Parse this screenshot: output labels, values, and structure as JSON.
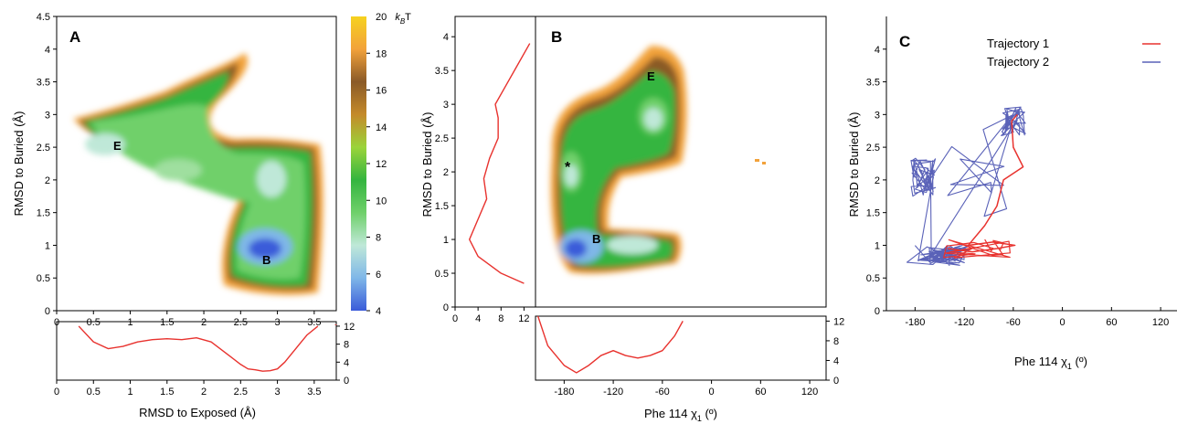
{
  "colorbar": {
    "label_value": "20",
    "label_unit_prefix": "k",
    "label_unit_sub": "B",
    "label_unit_suffix": "T",
    "ticks": [
      "4",
      "6",
      "8",
      "10",
      "12",
      "14",
      "16",
      "18"
    ],
    "colormap": [
      "#3a5bd9",
      "#7fb7e8",
      "#bfe8d8",
      "#6fd06a",
      "#34b53f",
      "#9bd43a",
      "#c48a2a",
      "#8a5a28",
      "#f2a23b",
      "#f6d21f"
    ]
  },
  "panelA": {
    "letter": "A",
    "xlabel": "RMSD to Exposed (Å)",
    "ylabel": "RMSD to Buried (Å)",
    "x_ticks": [
      "0",
      "0.5",
      "1",
      "1.5",
      "2",
      "2.5",
      "3",
      "3.5"
    ],
    "y_ticks": [
      "0",
      "0.5",
      "1",
      "1.5",
      "2",
      "2.5",
      "3",
      "3.5",
      "4",
      "4.5"
    ],
    "bottom_ticks": [
      "0",
      "4",
      "8",
      "12"
    ],
    "label_E": "E",
    "label_B": "B",
    "marker": "-"
  },
  "panelB": {
    "letter": "B",
    "xlabel_main": "Phe 114 χ",
    "xlabel_sub": "1",
    "xlabel_unit": " (º)",
    "ylabel": "RMSD to Buried (Å)",
    "x_ticks": [
      "-180",
      "-120",
      "-60",
      "0",
      "60",
      "120"
    ],
    "y_ticks": [
      "0",
      "0.5",
      "1",
      "1.5",
      "2",
      "2.5",
      "3",
      "3.5",
      "4"
    ],
    "side_ticks": [
      "0",
      "4",
      "8",
      "12"
    ],
    "bottom_ticks": [
      "0",
      "4",
      "8",
      "12"
    ],
    "label_E": "E",
    "label_B": "B",
    "label_star": "*"
  },
  "panelC": {
    "letter": "C",
    "xlabel_main": "Phe 114 χ",
    "xlabel_sub": "1",
    "xlabel_unit": " (º)",
    "ylabel": "RMSD to Buried (Å)",
    "x_ticks": [
      "-180",
      "-120",
      "-60",
      "0",
      "60",
      "120"
    ],
    "y_ticks": [
      "0",
      "0.5",
      "1",
      "1.5",
      "2",
      "2.5",
      "3",
      "3.5",
      "4"
    ],
    "legend": [
      {
        "name": "Trajectory 1",
        "color": "#e8322e"
      },
      {
        "name": "Trajectory 2",
        "color": "#5a62b8"
      }
    ]
  },
  "chart_data": [
    {
      "type": "heatmap",
      "title": "",
      "xlabel": "RMSD to Exposed (Å)",
      "ylabel": "RMSD to Buried (Å)",
      "xlim": [
        0,
        3.8
      ],
      "ylim": [
        0,
        4.5
      ],
      "colorbar_range": [
        4,
        20
      ],
      "colorbar_unit": "kBT",
      "annotations": [
        {
          "text": "E",
          "x": 0.8,
          "y": 2.9
        },
        {
          "text": "B",
          "x": 2.8,
          "y": 0.8
        }
      ],
      "basins_kBT": [
        {
          "x": 0.55,
          "y": 2.95,
          "value": 10
        },
        {
          "x": 1.45,
          "y": 2.1,
          "value": 12
        },
        {
          "x": 2.75,
          "y": 2.0,
          "value": 7
        },
        {
          "x": 2.85,
          "y": 0.85,
          "value": 4.5
        }
      ],
      "marginal_x": {
        "ylim": [
          0,
          13
        ],
        "x": [
          0.3,
          0.5,
          0.7,
          0.9,
          1.1,
          1.3,
          1.5,
          1.7,
          1.9,
          2.1,
          2.3,
          2.5,
          2.6,
          2.7,
          2.8,
          2.9,
          3.0,
          3.1,
          3.2,
          3.3,
          3.4,
          3.55
        ],
        "y": [
          12,
          8.5,
          7,
          7.5,
          8.5,
          9.0,
          9.2,
          9.0,
          9.4,
          8.5,
          6,
          3.5,
          2.5,
          2.3,
          2.0,
          2.1,
          2.5,
          4,
          6,
          8,
          10,
          12
        ]
      }
    },
    {
      "type": "heatmap",
      "title": "",
      "xlabel": "Phe 114 χ1 (º)",
      "ylabel": "RMSD to Buried (Å)",
      "xlim": [
        -215,
        140
      ],
      "ylim": [
        0,
        4.3
      ],
      "colorbar_range": [
        4,
        20
      ],
      "annotations": [
        {
          "text": "E",
          "x": -75,
          "y": 3.7
        },
        {
          "text": "B",
          "x": -143,
          "y": 0.95
        },
        {
          "text": "*",
          "x": -176,
          "y": 2.2
        }
      ],
      "basins_kBT": [
        {
          "x": -75,
          "y": 2.95,
          "value": 9
        },
        {
          "x": -178,
          "y": 2.05,
          "value": 7
        },
        {
          "x": -165,
          "y": 0.85,
          "value": 4.5
        },
        {
          "x": -105,
          "y": 0.9,
          "value": 6
        }
      ],
      "marginal_y": {
        "xlim": [
          0,
          14
        ],
        "y": [
          0.35,
          0.5,
          0.75,
          1.0,
          1.3,
          1.6,
          1.9,
          2.2,
          2.5,
          2.8,
          3.0,
          3.3,
          3.6,
          3.9
        ],
        "x": [
          12,
          8,
          4,
          2.5,
          4,
          5.5,
          5,
          6,
          7.5,
          7.5,
          7,
          9,
          11,
          13
        ]
      },
      "marginal_x": {
        "ylim": [
          0,
          13
        ],
        "x": [
          -212,
          -200,
          -180,
          -165,
          -150,
          -135,
          -120,
          -105,
          -90,
          -75,
          -60,
          -45,
          -35
        ],
        "y": [
          13,
          7,
          3,
          1.5,
          3,
          5,
          6,
          5,
          4.5,
          5,
          6,
          9,
          12
        ]
      }
    },
    {
      "type": "line",
      "title": "",
      "xlabel": "Phe 114 χ1 (º)",
      "ylabel": "RMSD to Buried (Å)",
      "xlim": [
        -215,
        140
      ],
      "ylim": [
        0,
        4.5
      ],
      "series": [
        {
          "name": "Trajectory 1",
          "points": [
            [
              -140,
              0.95
            ],
            [
              -110,
              0.9
            ],
            [
              -80,
              0.95
            ],
            [
              -58,
              1.0
            ],
            [
              -85,
              1.05
            ],
            [
              -115,
              1.0
            ],
            [
              -95,
              1.3
            ],
            [
              -80,
              1.6
            ],
            [
              -72,
              2.0
            ],
            [
              -48,
              2.2
            ],
            [
              -60,
              2.5
            ],
            [
              -62,
              2.9
            ],
            [
              -55,
              3.0
            ]
          ]
        },
        {
          "name": "Trajectory 2",
          "clusters": [
            {
              "x": -170,
              "y": 2.05
            },
            {
              "x": -150,
              "y": 0.85
            },
            {
              "x": -60,
              "y": 2.9
            }
          ]
        }
      ]
    }
  ]
}
